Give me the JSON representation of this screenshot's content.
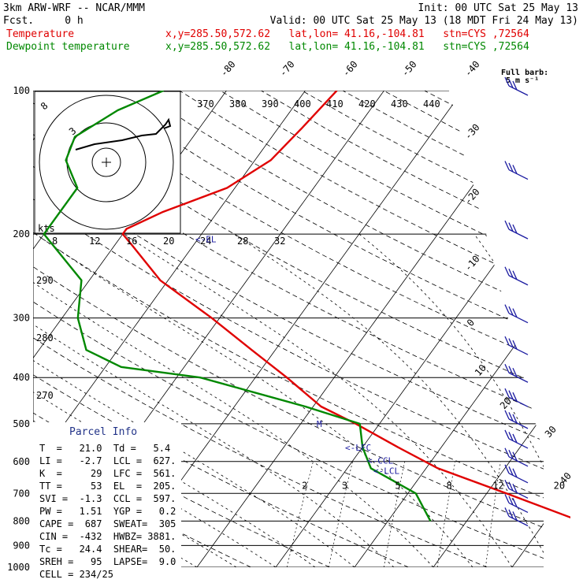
{
  "header": {
    "model": "3km ARW-WRF -- NCAR/MMM",
    "init": "Init: 00 UTC Sat 25 May 13",
    "fcst": "Fcst.     0 h",
    "valid": "Valid: 00 UTC Sat 25 May 13 (18 MDT Fri 24 May 13)",
    "temp_label": "Temperature",
    "dew_label": "Dewpoint temperature",
    "temp_info": "x,y=285.50,572.62   lat,lon= 41.16,-104.81   stn=CYS ,72564",
    "dew_info": "x,y=285.50,572.62   lat,lon= 41.16,-104.81   stn=CYS ,72564",
    "full_barb_1": "Full barb:",
    "full_barb_2": "5 m s⁻¹"
  },
  "colors": {
    "temperature": "#e00000",
    "dewpoint": "#008800",
    "wind": "#1a1aa0",
    "parcel": "#223388"
  },
  "chart_data": {
    "type": "line",
    "title": "",
    "xlabel": "",
    "ylabel": "",
    "y_scale": "log-pressure",
    "pressure_levels": [
      100,
      200,
      300,
      400,
      500,
      600,
      700,
      800,
      900,
      1000
    ],
    "isotherm_labels": [
      -80,
      -70,
      -60,
      -50,
      -40,
      -30,
      -20,
      -10,
      0,
      10,
      20,
      30,
      40
    ],
    "theta_labels": [
      370,
      380,
      390,
      400,
      410,
      420,
      430,
      440
    ],
    "mixing_ratio_labels": [
      2,
      3,
      5,
      8,
      12,
      20
    ],
    "left_theta_labels": [
      290,
      280,
      270
    ],
    "hodograph": {
      "units_label": "kts",
      "ring_labels": [
        8,
        12,
        16,
        20,
        24,
        28,
        32
      ],
      "inner_labels": [
        "8",
        "3"
      ]
    },
    "series": [
      {
        "name": "Temperature",
        "pressure": [
          800,
          700,
          620,
          560,
          500,
          460,
          400,
          350,
          300,
          250,
          210,
          200,
          195,
          180,
          160,
          140,
          120,
          100
        ],
        "temperature": [
          24.4,
          12.5,
          1.5,
          -5.5,
          -13,
          -19,
          -26,
          -33,
          -41,
          -51,
          -58,
          -60,
          -60,
          -57,
          -51,
          -48,
          -47,
          -46
        ]
      },
      {
        "name": "Dewpoint temperature",
        "pressure": [
          800,
          700,
          620,
          560,
          500,
          460,
          400,
          380,
          350,
          300,
          250,
          200,
          160,
          140,
          125,
          110,
          100
        ],
        "dewpoint": [
          5.4,
          1,
          -7,
          -10,
          -12.5,
          -21,
          -37,
          -48,
          -54,
          -58,
          -61,
          -70,
          -70,
          -74,
          -75,
          -72,
          -68
        ]
      }
    ],
    "wind_barb_levels": [
      100,
      150,
      200,
      250,
      300,
      350,
      400,
      450,
      500,
      550,
      600,
      650,
      700,
      750,
      800
    ],
    "level_markers": [
      {
        "label": "EL",
        "pressure": 205
      },
      {
        "label": "M",
        "pressure": 500
      },
      {
        "label": "LFC",
        "pressure": 561
      },
      {
        "label": "CCL",
        "pressure": 597
      },
      {
        "label": "LCL",
        "pressure": 627
      }
    ]
  },
  "parcel_info": {
    "title": "Parcel Info",
    "rows": [
      "T  =   21.0  Td =   5.4",
      "LI =   -2.7  LCL =  627.",
      "K  =     29  LFC =  561.",
      "TT =     53  EL  =  205.",
      "SVI =  -1.3  CCL =  597.",
      "PW =   1.51  YGP =   0.2",
      "CAPE =  687  SWEAT=  305",
      "CIN =  -432  HWBZ= 3881.",
      "Tc =   24.4  SHEAR=  50.",
      "SREH =   95  LAPSE=  9.0",
      "CELL = 234/25"
    ]
  }
}
